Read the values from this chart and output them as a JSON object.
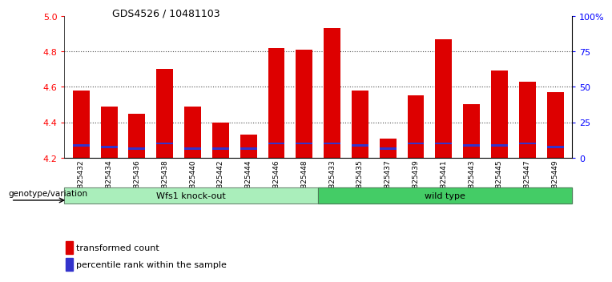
{
  "title": "GDS4526 / 10481103",
  "samples": [
    "GSM825432",
    "GSM825434",
    "GSM825436",
    "GSM825438",
    "GSM825440",
    "GSM825442",
    "GSM825444",
    "GSM825446",
    "GSM825448",
    "GSM825433",
    "GSM825435",
    "GSM825437",
    "GSM825439",
    "GSM825441",
    "GSM825443",
    "GSM825445",
    "GSM825447",
    "GSM825449"
  ],
  "red_values": [
    4.58,
    4.49,
    4.45,
    4.7,
    4.49,
    4.4,
    4.33,
    4.82,
    4.81,
    4.93,
    4.58,
    4.31,
    4.55,
    4.87,
    4.5,
    4.69,
    4.63,
    4.57
  ],
  "blue_values": [
    4.27,
    4.26,
    4.25,
    4.28,
    4.25,
    4.25,
    4.25,
    4.28,
    4.28,
    4.28,
    4.27,
    4.25,
    4.28,
    4.28,
    4.27,
    4.27,
    4.28,
    4.26
  ],
  "y_min": 4.2,
  "y_max": 5.0,
  "y_ticks_left": [
    4.2,
    4.4,
    4.6,
    4.8,
    5.0
  ],
  "y_ticks_right": [
    0,
    25,
    50,
    75,
    100
  ],
  "y_ticks_right_labels": [
    "0",
    "25",
    "50",
    "75",
    "100%"
  ],
  "group1_label": "Wfs1 knock-out",
  "group2_label": "wild type",
  "group1_count": 9,
  "group2_count": 9,
  "genotype_label": "genotype/variation",
  "legend_red": "transformed count",
  "legend_blue": "percentile rank within the sample",
  "bar_width": 0.6,
  "red_color": "#dd0000",
  "blue_color": "#3333cc",
  "group1_bg": "#aaeebb",
  "group2_bg": "#44cc66",
  "grid_color": "#000000"
}
